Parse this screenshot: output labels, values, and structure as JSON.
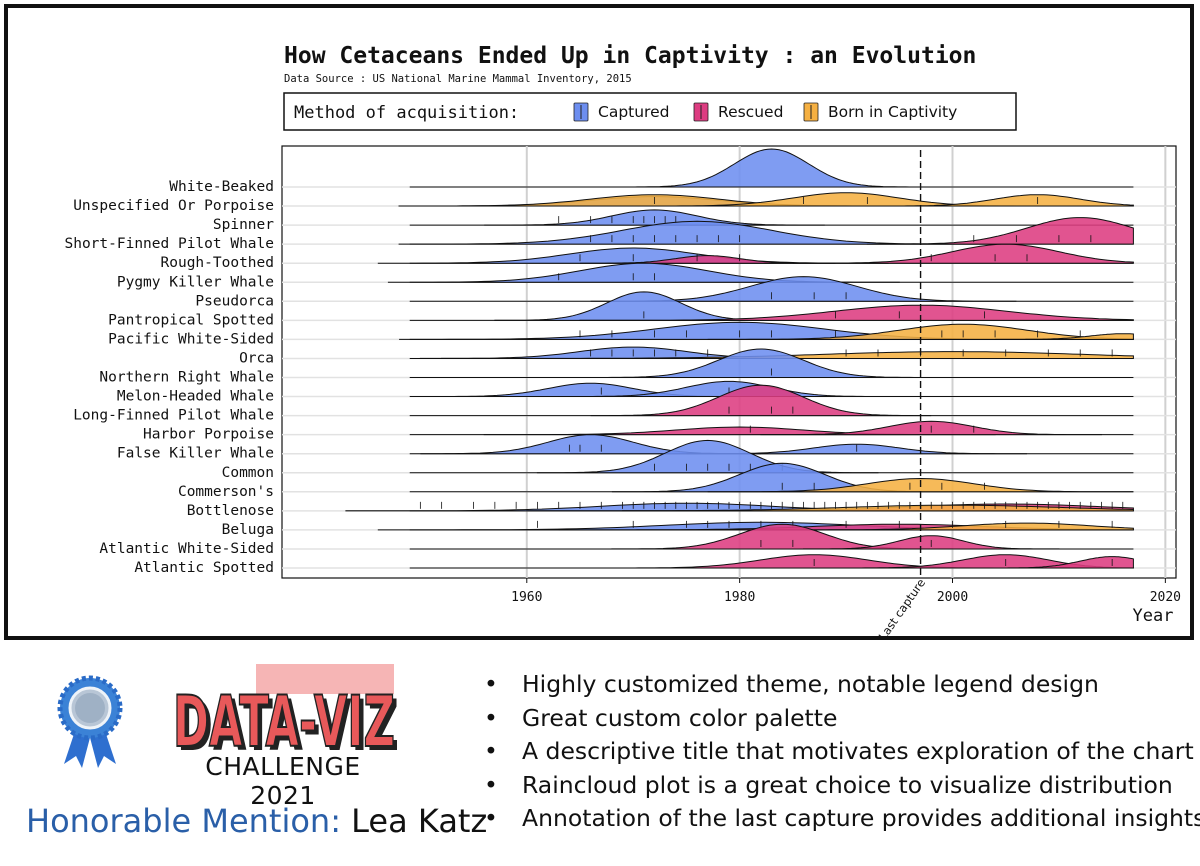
{
  "chart_data": {
    "type": "raincloud",
    "title": "How Cetaceans Ended Up in Captivity : an Evolution",
    "subtitle": "Data Source : US National Marine Mammal Inventory, 2015",
    "legend": {
      "title": "Method of acquisition:",
      "position": "top-center",
      "items": [
        {
          "label": "Captured",
          "color": "#6d8ef0"
        },
        {
          "label": "Rescued",
          "color": "#dd3c81"
        },
        {
          "label": "Born in Captivity",
          "color": "#f5b042"
        }
      ]
    },
    "xlabel": "Year",
    "xlim": [
      1937,
      2021
    ],
    "xticks": [
      1960,
      1980,
      2000,
      2020
    ],
    "grid": true,
    "annotation": {
      "label": "Last capture",
      "x": 1997
    },
    "species": [
      {
        "name": "White-Beaked",
        "clouds": [
          {
            "method": "Captured",
            "mean": 1983,
            "sd": 3.5,
            "h": 1.0
          }
        ],
        "ticks": []
      },
      {
        "name": "Unspecified Or Porpoise",
        "clouds": [
          {
            "method": "Captured",
            "mean": 1972,
            "sd": 6,
            "h": 0.25
          },
          {
            "method": "Born in Captivity",
            "mean": 1972,
            "sd": 6,
            "h": 0.3
          },
          {
            "method": "Born in Captivity",
            "mean": 1990,
            "sd": 5,
            "h": 0.35
          },
          {
            "method": "Born in Captivity",
            "mean": 2008,
            "sd": 4,
            "h": 0.3
          }
        ],
        "ticks": [
          1972,
          1986,
          1992,
          2008
        ]
      },
      {
        "name": "Spinner",
        "clouds": [
          {
            "method": "Captured",
            "mean": 1972,
            "sd": 4,
            "h": 0.4
          }
        ],
        "ticks": [
          1963,
          1966,
          1968,
          1970,
          1971,
          1972,
          1973,
          1974
        ]
      },
      {
        "name": "Short-Finned Pilot Whale",
        "clouds": [
          {
            "method": "Captured",
            "mean": 1976,
            "sd": 7,
            "h": 0.6
          },
          {
            "method": "Rescued",
            "mean": 2012,
            "sd": 5,
            "h": 0.7
          }
        ],
        "ticks": [
          1966,
          1968,
          1970,
          1972,
          1974,
          1976,
          1978,
          1980,
          2002,
          2006,
          2010,
          2013
        ]
      },
      {
        "name": "Rough-Toothed",
        "clouds": [
          {
            "method": "Captured",
            "mean": 1970,
            "sd": 6,
            "h": 0.4
          },
          {
            "method": "Rescued",
            "mean": 1977,
            "sd": 3,
            "h": 0.2
          },
          {
            "method": "Rescued",
            "mean": 2005,
            "sd": 5,
            "h": 0.5
          }
        ],
        "ticks": [
          1965,
          1970,
          1976,
          1980,
          1998,
          2004,
          2007
        ]
      },
      {
        "name": "Pygmy Killer Whale",
        "clouds": [
          {
            "method": "Captured",
            "mean": 1971,
            "sd": 6,
            "h": 0.5
          }
        ],
        "ticks": [
          1963,
          1970,
          1972
        ]
      },
      {
        "name": "Pseudorca",
        "clouds": [
          {
            "method": "Captured",
            "mean": 1986,
            "sd": 5,
            "h": 0.65
          }
        ],
        "ticks": [
          1983,
          1987,
          1990
        ]
      },
      {
        "name": "Pantropical Spotted",
        "clouds": [
          {
            "method": "Captured",
            "mean": 1971,
            "sd": 3.5,
            "h": 0.75
          },
          {
            "method": "Rescued",
            "mean": 1997,
            "sd": 8,
            "h": 0.4
          }
        ],
        "ticks": [
          1971,
          1989,
          1995,
          2003
        ]
      },
      {
        "name": "Pacific White-Sided",
        "clouds": [
          {
            "method": "Captured",
            "mean": 1980,
            "sd": 8,
            "h": 0.45
          },
          {
            "method": "Born in Captivity",
            "mean": 2001,
            "sd": 6,
            "h": 0.4
          },
          {
            "method": "Born in Captivity",
            "mean": 2016,
            "sd": 3,
            "h": 0.15
          }
        ],
        "ticks": [
          1965,
          1968,
          1972,
          1975,
          1980,
          1983,
          1989,
          1999,
          2001,
          2004,
          2008,
          2012
        ]
      },
      {
        "name": "Orca",
        "clouds": [
          {
            "method": "Captured",
            "mean": 1970,
            "sd": 5,
            "h": 0.3
          },
          {
            "method": "Born in Captivity",
            "mean": 2000,
            "sd": 12,
            "h": 0.18
          }
        ],
        "ticks": [
          1966,
          1968,
          1970,
          1972,
          1974,
          1977,
          1990,
          1993,
          1997,
          2001,
          2005,
          2009,
          2012,
          2015
        ]
      },
      {
        "name": "Northern Right Whale",
        "clouds": [
          {
            "method": "Captured",
            "mean": 1982,
            "sd": 4,
            "h": 0.75
          }
        ],
        "ticks": [
          1983
        ]
      },
      {
        "name": "Melon-Headed Whale",
        "clouds": [
          {
            "method": "Captured",
            "mean": 1966,
            "sd": 4,
            "h": 0.35
          },
          {
            "method": "Captured",
            "mean": 1979,
            "sd": 4,
            "h": 0.4
          }
        ],
        "ticks": [
          1967,
          1979
        ]
      },
      {
        "name": "Long-Finned Pilot Whale",
        "clouds": [
          {
            "method": "Rescued",
            "mean": 1982,
            "sd": 4,
            "h": 0.8
          }
        ],
        "ticks": [
          1979,
          1983,
          1985
        ]
      },
      {
        "name": "Harbor Porpoise",
        "clouds": [
          {
            "method": "Rescued",
            "mean": 1980,
            "sd": 6,
            "h": 0.2
          },
          {
            "method": "Rescued",
            "mean": 1998,
            "sd": 4,
            "h": 0.35
          }
        ],
        "ticks": [
          1981,
          1998,
          2002
        ]
      },
      {
        "name": "False Killer Whale",
        "clouds": [
          {
            "method": "Captured",
            "mean": 1966,
            "sd": 4,
            "h": 0.5
          },
          {
            "method": "Captured",
            "mean": 1991,
            "sd": 4,
            "h": 0.25
          }
        ],
        "ticks": [
          1964,
          1965,
          1967,
          1991
        ]
      },
      {
        "name": "Common",
        "clouds": [
          {
            "method": "Captured",
            "mean": 1977,
            "sd": 4,
            "h": 0.85
          }
        ],
        "ticks": [
          1972,
          1975,
          1977,
          1979,
          1981,
          1984
        ]
      },
      {
        "name": "Commerson's",
        "clouds": [
          {
            "method": "Captured",
            "mean": 1984,
            "sd": 4,
            "h": 0.75
          },
          {
            "method": "Born in Captivity",
            "mean": 1997,
            "sd": 5,
            "h": 0.35
          }
        ],
        "ticks": [
          1984,
          1987,
          1996,
          1999,
          2003
        ]
      },
      {
        "name": "Bottlenose",
        "clouds": [
          {
            "method": "Captured",
            "mean": 1975,
            "sd": 8,
            "h": 0.2
          },
          {
            "method": "Rescued",
            "mean": 2005,
            "sd": 9,
            "h": 0.18
          },
          {
            "method": "Born in Captivity",
            "mean": 2000,
            "sd": 10,
            "h": 0.15
          }
        ],
        "ticks": [
          1950,
          1952,
          1955,
          1957,
          1959,
          1961,
          1963,
          1965,
          1967,
          1969,
          1970,
          1971,
          1972,
          1973,
          1974,
          1975,
          1976,
          1977,
          1978,
          1979,
          1980,
          1981,
          1982,
          1983,
          1984,
          1985,
          1986,
          1987,
          1988,
          1989,
          1990,
          1991,
          1992,
          1993,
          1994,
          1995,
          1996,
          1997,
          1998,
          1999,
          2000,
          2001,
          2002,
          2003,
          2004,
          2005,
          2006,
          2007,
          2008,
          2009,
          2010,
          2011,
          2012,
          2013,
          2014,
          2015,
          2016
        ]
      },
      {
        "name": "Beluga",
        "clouds": [
          {
            "method": "Captured",
            "mean": 1982,
            "sd": 9,
            "h": 0.2
          },
          {
            "method": "Rescued",
            "mean": 1995,
            "sd": 8,
            "h": 0.15
          },
          {
            "method": "Born in Captivity",
            "mean": 2007,
            "sd": 6,
            "h": 0.18
          }
        ],
        "ticks": [
          1961,
          1970,
          1975,
          1977,
          1979,
          1982,
          1985,
          1990,
          1995,
          2000,
          2005,
          2010,
          2015
        ]
      },
      {
        "name": "Atlantic White-Sided",
        "clouds": [
          {
            "method": "Rescued",
            "mean": 1984,
            "sd": 4,
            "h": 0.65
          },
          {
            "method": "Rescued",
            "mean": 1998,
            "sd": 3,
            "h": 0.35
          }
        ],
        "ticks": [
          1982,
          1985,
          1998
        ]
      },
      {
        "name": "Atlantic Spotted",
        "clouds": [
          {
            "method": "Rescued",
            "mean": 1987,
            "sd": 5,
            "h": 0.35
          },
          {
            "method": "Rescued",
            "mean": 2005,
            "sd": 4,
            "h": 0.35
          },
          {
            "method": "Rescued",
            "mean": 2015,
            "sd": 3,
            "h": 0.3
          }
        ],
        "ticks": [
          1987,
          2005,
          2015
        ]
      }
    ]
  },
  "footer": {
    "logo_text": "DATA-VIZ",
    "challenge": "CHALLENGE 2021",
    "honorable_label": "Honorable Mention:",
    "honorable_name": "Lea Katz",
    "bullets": [
      "Highly customized theme, notable legend design",
      "Great custom color palette",
      "A descriptive title that motivates exploration of the chart",
      "Raincloud plot is a great choice to visualize distribution",
      "Annotation of the last capture provides additional insights"
    ],
    "colors": {
      "accent_red": "#e8595a",
      "accent_blue": "#2a5fa8",
      "ribbon": "#3b82d6"
    }
  }
}
